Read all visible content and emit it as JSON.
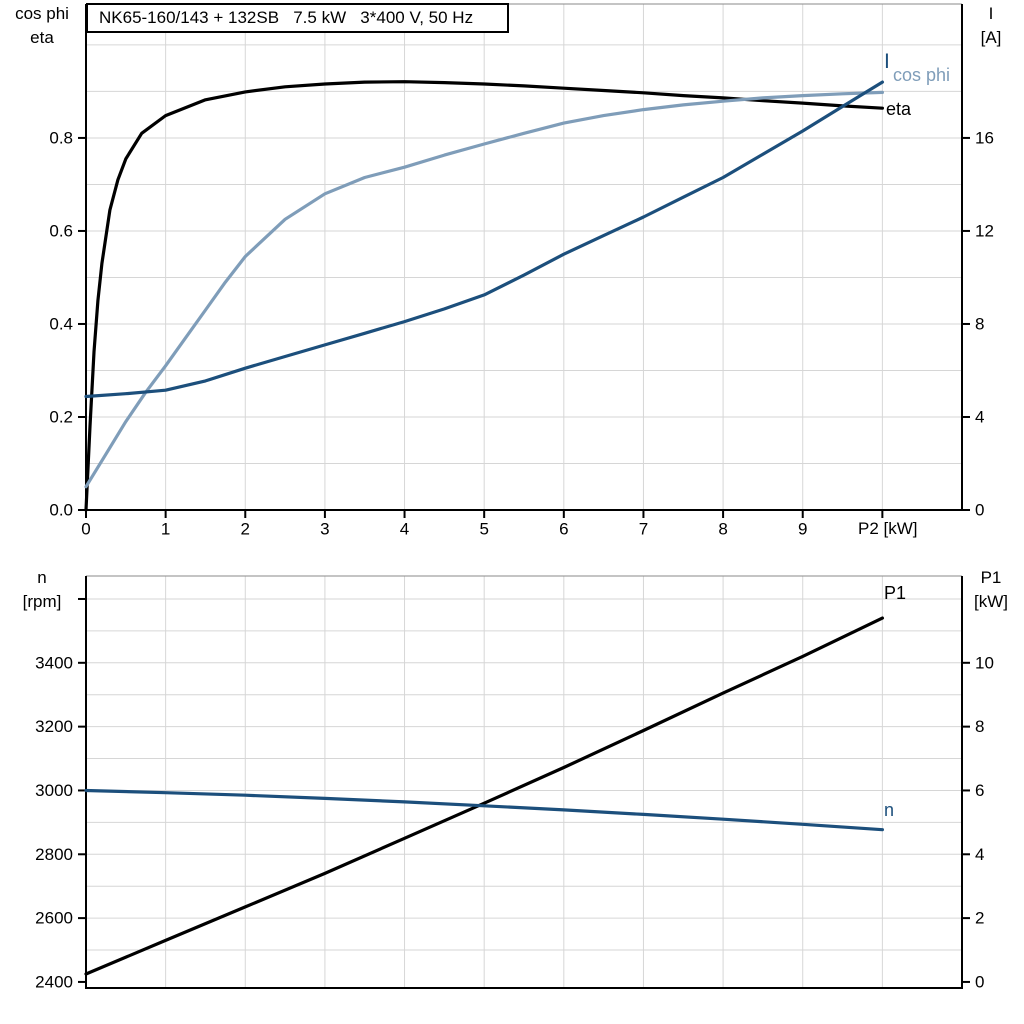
{
  "title": "NK65-160/143 + 132SB   7.5 kW   3*400 V, 50 Hz",
  "colors": {
    "black": "#000000",
    "light_blue": "#7f9db9",
    "dark_blue": "#1c4f7c",
    "grid": "#d6d6d6",
    "axis": "#000000",
    "background": "#ffffff"
  },
  "top_chart": {
    "y_left_title_line1": "cos phi",
    "y_left_title_line2": "eta",
    "y_right_title_line1": "I",
    "y_right_title_line2": "[A]",
    "x_title": "P2 [kW]",
    "curve_label_i": "I",
    "curve_label_cos_phi": "cos phi",
    "curve_label_eta": "eta"
  },
  "bottom_chart": {
    "y_left_title_line1": "n",
    "y_left_title_line2": "[rpm]",
    "y_right_title_line1": "P1",
    "y_right_title_line2": "[kW]",
    "curve_label_p1": "P1",
    "curve_label_n": "n"
  },
  "chart_data": [
    {
      "type": "line",
      "title": "NK65-160/143 + 132SB 7.5 kW 3*400 V, 50 Hz",
      "xlabel": "P2 [kW]",
      "xlim": [
        0,
        11
      ],
      "x_ticks": [
        0,
        1,
        2,
        3,
        4,
        5,
        6,
        7,
        8,
        9,
        10
      ],
      "x_tick_labels": [
        "0",
        "1",
        "2",
        "3",
        "4",
        "5",
        "6",
        "7",
        "8",
        "9",
        ""
      ],
      "x_grid_lines": [
        1,
        2,
        3,
        4,
        5,
        6,
        7,
        8,
        9,
        10
      ],
      "left_axis": {
        "title": "cos phi / eta",
        "range": [
          0,
          1.088
        ],
        "ticks": [
          0,
          0.2,
          0.4,
          0.6,
          0.8
        ],
        "tick_labels": [
          "0.0",
          "0.2",
          "0.4",
          "0.6",
          "0.8"
        ],
        "grid_lines": [
          0.1,
          0.2,
          0.3,
          0.4,
          0.5,
          0.6,
          0.7,
          0.8,
          0.9,
          1.0
        ],
        "extra_ticks": []
      },
      "right_axis": {
        "title": "I [A]",
        "range": [
          0,
          21.76
        ],
        "ticks": [
          0,
          4,
          8,
          12,
          16
        ],
        "tick_labels": [
          "0",
          "4",
          "8",
          "12",
          "16"
        ],
        "extra_ticks": []
      },
      "series": [
        {
          "name": "eta",
          "axis": "left",
          "color": "#000000",
          "x": [
            0,
            0.05,
            0.1,
            0.15,
            0.2,
            0.3,
            0.4,
            0.5,
            0.7,
            1,
            1.5,
            2,
            2.5,
            3,
            3.5,
            4,
            4.5,
            5,
            5.5,
            6,
            6.5,
            7,
            7.5,
            8,
            8.5,
            9,
            9.5,
            10
          ],
          "y": [
            0,
            0.18,
            0.34,
            0.45,
            0.53,
            0.645,
            0.71,
            0.755,
            0.81,
            0.848,
            0.882,
            0.899,
            0.91,
            0.916,
            0.92,
            0.921,
            0.919,
            0.916,
            0.912,
            0.907,
            0.902,
            0.897,
            0.891,
            0.886,
            0.88,
            0.875,
            0.869,
            0.864
          ]
        },
        {
          "name": "cos phi",
          "axis": "left",
          "color": "#7f9db9",
          "x": [
            0,
            0.25,
            0.5,
            0.75,
            1,
            1.25,
            1.5,
            1.75,
            2,
            2.5,
            3,
            3.5,
            4,
            4.5,
            5,
            5.5,
            6,
            6.5,
            7,
            7.5,
            8,
            8.5,
            9,
            9.5,
            10
          ],
          "y": [
            0.05,
            0.12,
            0.19,
            0.253,
            0.31,
            0.37,
            0.43,
            0.49,
            0.545,
            0.625,
            0.68,
            0.715,
            0.737,
            0.763,
            0.787,
            0.81,
            0.832,
            0.848,
            0.861,
            0.871,
            0.879,
            0.886,
            0.891,
            0.895,
            0.898
          ]
        },
        {
          "name": "I",
          "axis": "right",
          "color": "#1c4f7c",
          "x": [
            0,
            0.5,
            1,
            1.5,
            2,
            2.5,
            3,
            3.5,
            4,
            4.5,
            5,
            5.5,
            6,
            6.5,
            7,
            7.5,
            8,
            8.5,
            9,
            9.5,
            10
          ],
          "y": [
            4.88,
            5.0,
            5.15,
            5.55,
            6.1,
            6.6,
            7.1,
            7.6,
            8.1,
            8.65,
            9.25,
            10.1,
            11.0,
            11.8,
            12.6,
            13.45,
            14.3,
            15.3,
            16.3,
            17.35,
            18.4
          ]
        }
      ]
    },
    {
      "type": "line",
      "title": "",
      "xlabel": "",
      "xlim": [
        0,
        11
      ],
      "x_ticks": [],
      "x_tick_labels": [],
      "x_grid_lines": [
        1,
        2,
        3,
        4,
        5,
        6,
        7,
        8,
        9,
        10
      ],
      "left_axis": {
        "title": "n [rpm]",
        "range": [
          2381,
          3672
        ],
        "ticks": [
          2400,
          2600,
          2800,
          3000,
          3200,
          3400
        ],
        "tick_labels": [
          "2400",
          "2600",
          "2800",
          "3000",
          "3200",
          "3400"
        ],
        "grid_lines": [
          2500,
          2600,
          2700,
          2800,
          2900,
          3000,
          3100,
          3200,
          3300,
          3400,
          3500,
          3600
        ],
        "extra_ticks": [
          3600
        ]
      },
      "right_axis": {
        "title": "P1 [kW]",
        "range": [
          -0.19,
          12.72
        ],
        "ticks": [
          0,
          2,
          4,
          6,
          8,
          10
        ],
        "tick_labels": [
          "0",
          "2",
          "4",
          "6",
          "8",
          "10"
        ],
        "extra_ticks": []
      },
      "series": [
        {
          "name": "P1",
          "axis": "right",
          "color": "#000000",
          "x": [
            0,
            1,
            2,
            3,
            4,
            5,
            6,
            7,
            8,
            9,
            10
          ],
          "y": [
            0.25,
            1.3,
            2.35,
            3.4,
            4.5,
            5.6,
            6.72,
            7.88,
            9.05,
            10.2,
            11.4
          ]
        },
        {
          "name": "n",
          "axis": "left",
          "color": "#1c4f7c",
          "x": [
            0,
            1,
            2,
            3,
            4,
            5,
            6,
            7,
            8,
            9,
            10
          ],
          "y": [
            3000,
            2993,
            2985,
            2975,
            2964,
            2952,
            2939,
            2925,
            2910,
            2894,
            2877
          ]
        }
      ]
    }
  ]
}
